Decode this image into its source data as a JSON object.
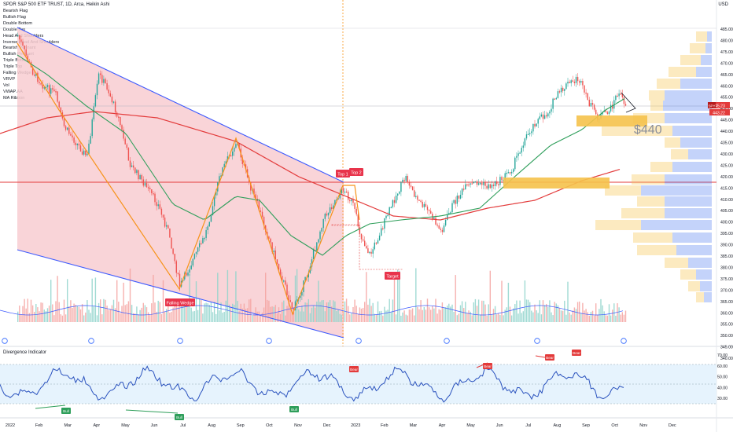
{
  "header": {
    "title": "SPDR S&P 500 ETF TRUST, 1D, Arca, Heikin Ashi",
    "currency": "USD"
  },
  "indicators": [
    "Bearish Flag",
    "Bullish Flag",
    "Double Bottom",
    "Double Top",
    "Head And Shoulders",
    "Inverse Head And Shoulders",
    "Bearish Pennant",
    "Bullish Pennant",
    "Triple Bottom",
    "Triple Top",
    "Falling Wedge",
    "VRVP",
    "Vol",
    "VWAP AA",
    "MA Ribbon"
  ],
  "price_axis": {
    "ticks": [
      "485.00",
      "480.00",
      "475.00",
      "470.00",
      "465.00",
      "460.00",
      "455.00",
      "450.00",
      "445.00",
      "440.00",
      "435.00",
      "430.00",
      "425.00",
      "420.00",
      "415.00",
      "410.00",
      "405.00",
      "400.00",
      "395.00",
      "390.00",
      "385.00",
      "380.00",
      "375.00",
      "370.00",
      "365.00",
      "360.00",
      "355.00",
      "350.00",
      "345.00",
      "340.00"
    ],
    "labels": {
      "symbol": "SPY",
      "last": "445.23",
      "other": "443.22"
    }
  },
  "time_axis": {
    "ticks": [
      "2022",
      "Feb",
      "Mar",
      "Apr",
      "May",
      "Jun",
      "Jul",
      "Aug",
      "Sep",
      "Oct",
      "Nov",
      "Dec",
      "2023",
      "Feb",
      "Mar",
      "Apr",
      "May",
      "Jun",
      "Jul",
      "Aug",
      "Sep",
      "Oct",
      "Nov",
      "Dec"
    ]
  },
  "annotations": {
    "top1": "Top 1",
    "top2": "Top 2",
    "target": "Target",
    "falling_wedge": "Falling Wedge",
    "price_note": "$440"
  },
  "divergence": {
    "title": "Divergence Indicator",
    "ticks": [
      "70.00",
      "60.00",
      "50.00",
      "40.00",
      "30.00"
    ],
    "bull": "Bull",
    "bear": "Bear",
    "levels": {
      "upper": 70,
      "lower": 30,
      "mid": 50
    }
  },
  "colors": {
    "up": "#26a69a",
    "down": "#ef5350",
    "wedge_fill": "#f8c8cc",
    "ma_green": "#2e9e5a",
    "ma_red": "#e33b3b",
    "wedge_line": "#3d5afe",
    "zigzag": "#f7931a",
    "vrvp_blue": "#3c6ef0",
    "vrvp_yellow": "#f5c24b",
    "rsi_line": "#2a52be"
  }
}
